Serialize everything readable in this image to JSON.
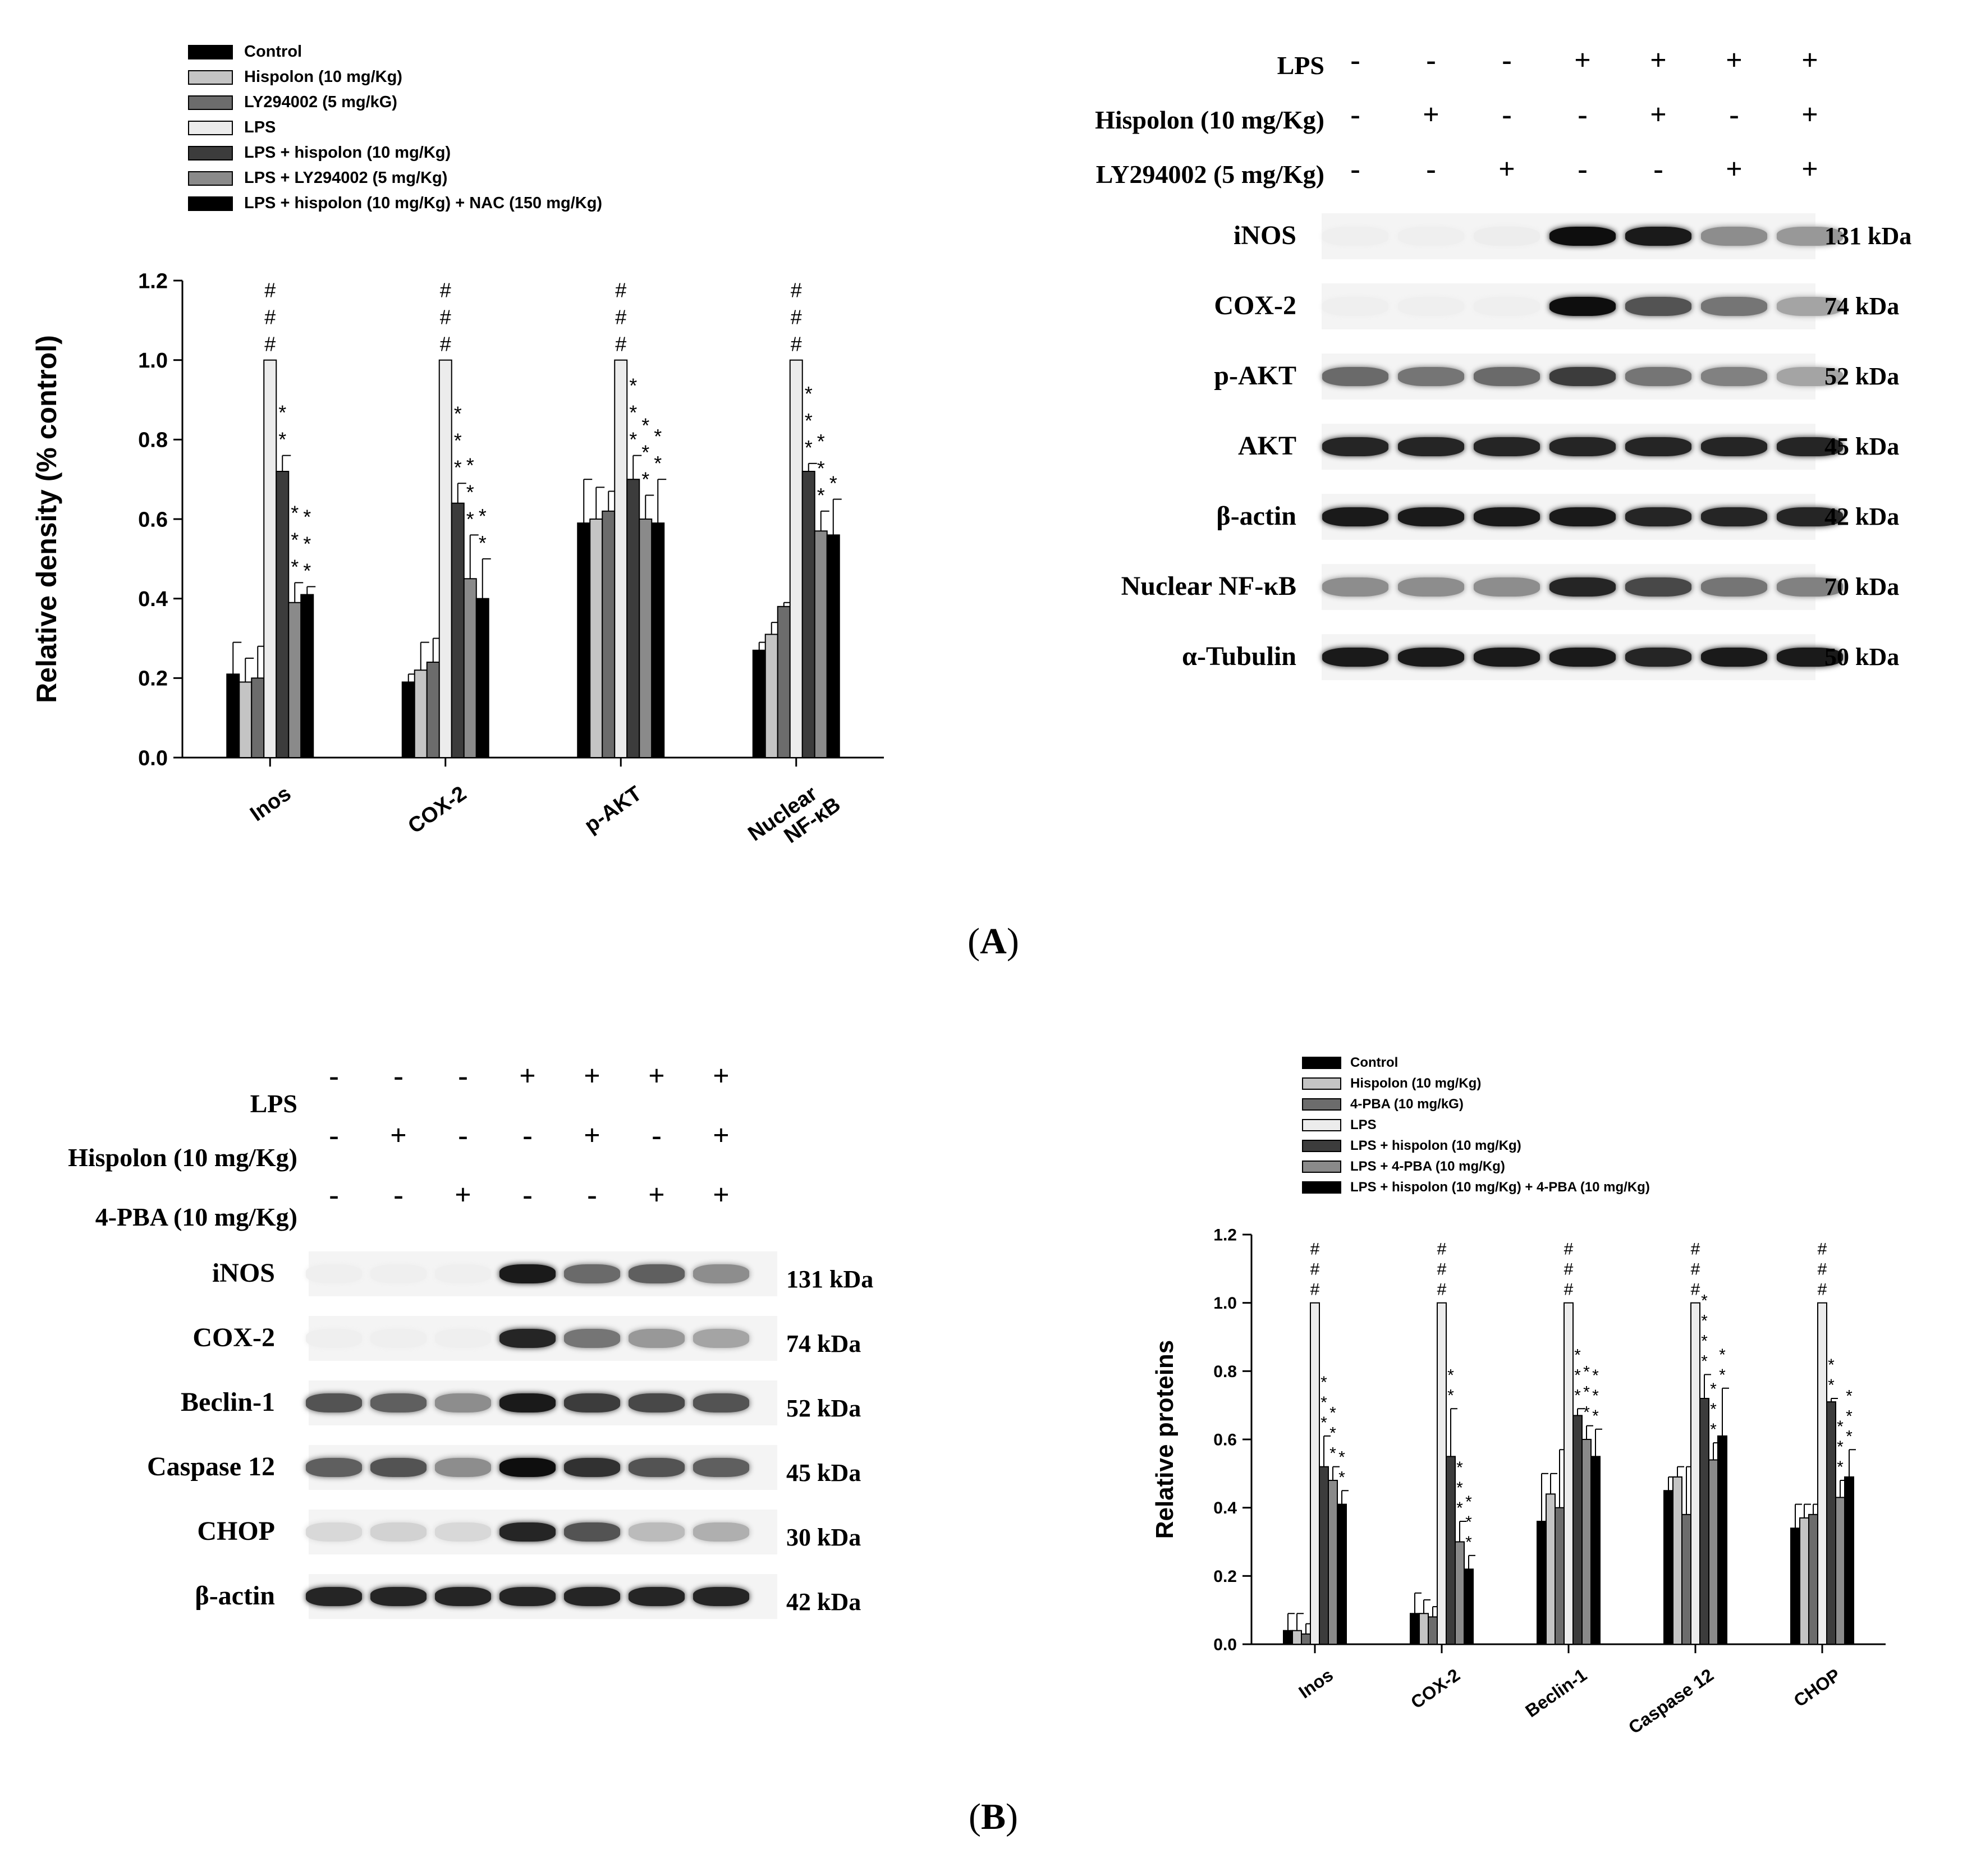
{
  "panel_a": {
    "caption_letter": "A",
    "chart_legend": [
      {
        "label": "Control",
        "color": "#000000"
      },
      {
        "label": "Hispolon (10 mg/Kg)",
        "color": "#c4c4c4"
      },
      {
        "label": "LY294002 (5 mg/kG)",
        "color": "#6c6c6c"
      },
      {
        "label": "LPS",
        "color": "#ececec"
      },
      {
        "label": "LPS + hispolon (10 mg/Kg)",
        "color": "#3c3c3c"
      },
      {
        "label": "LPS + LY294002 (5 mg/Kg)",
        "color": "#8a8a8a"
      },
      {
        "label": "LPS + hispolon (10 mg/Kg) + NAC (150 mg/Kg)",
        "color": "#000000"
      }
    ],
    "blot": {
      "conditions": [
        {
          "label": "LPS",
          "signs": [
            "-",
            "-",
            "-",
            "+",
            "+",
            "+",
            "+"
          ]
        },
        {
          "label": "Hispolon (10 mg/Kg)",
          "signs": [
            "-",
            "+",
            "-",
            "-",
            "+",
            "-",
            "+"
          ]
        },
        {
          "label": "LY294002 (5 mg/Kg)",
          "signs": [
            "-",
            "-",
            "+",
            "-",
            "-",
            "+",
            "+"
          ]
        }
      ],
      "proteins": [
        {
          "label": "iNOS",
          "kda": "131 kDa",
          "intensity": [
            0.02,
            0.02,
            0.03,
            1.0,
            0.95,
            0.45,
            0.4
          ]
        },
        {
          "label": "COX-2",
          "kda": "74 kDa",
          "intensity": [
            0.02,
            0.02,
            0.02,
            1.0,
            0.7,
            0.55,
            0.35
          ]
        },
        {
          "label": "p-AKT",
          "kda": "52 kDa",
          "intensity": [
            0.6,
            0.55,
            0.6,
            0.8,
            0.55,
            0.5,
            0.35
          ]
        },
        {
          "label": "AKT",
          "kda": "45 kDa",
          "intensity": [
            0.9,
            0.9,
            0.9,
            0.9,
            0.9,
            0.9,
            0.9
          ]
        },
        {
          "label": "β-actin",
          "kda": "42 kDa",
          "intensity": [
            0.95,
            0.95,
            0.95,
            0.95,
            0.9,
            0.9,
            0.9
          ]
        },
        {
          "label": "Nuclear NF-κB",
          "kda": "70 kDa",
          "intensity": [
            0.45,
            0.45,
            0.45,
            0.9,
            0.75,
            0.55,
            0.5
          ]
        },
        {
          "label": "α-Tubulin",
          "kda": "50 kDa",
          "intensity": [
            0.95,
            0.95,
            0.95,
            0.95,
            0.9,
            0.95,
            0.95
          ]
        }
      ]
    }
  },
  "panel_b": {
    "caption_letter": "B",
    "chart_legend": [
      {
        "label": "Control",
        "color": "#000000"
      },
      {
        "label": "Hispolon (10 mg/Kg)",
        "color": "#c4c4c4"
      },
      {
        "label": "4-PBA (10 mg/kG)",
        "color": "#6c6c6c"
      },
      {
        "label": "LPS",
        "color": "#ececec"
      },
      {
        "label": "LPS + hispolon (10 mg/Kg)",
        "color": "#3c3c3c"
      },
      {
        "label": "LPS + 4-PBA (10 mg/Kg)",
        "color": "#8a8a8a"
      },
      {
        "label": "LPS + hispolon (10 mg/Kg) + 4-PBA (10 mg/Kg)",
        "color": "#000000"
      }
    ],
    "blot": {
      "conditions": [
        {
          "label": "LPS",
          "signs": [
            "-",
            "-",
            "-",
            "+",
            "+",
            "+",
            "+"
          ]
        },
        {
          "label": "Hispolon (10 mg/Kg)",
          "signs": [
            "-",
            "+",
            "-",
            "-",
            "+",
            "-",
            "+"
          ]
        },
        {
          "label": "4-PBA (10 mg/Kg)",
          "signs": [
            "-",
            "-",
            "+",
            "-",
            "-",
            "+",
            "+"
          ]
        }
      ],
      "proteins": [
        {
          "label": "iNOS",
          "kda": "131 kDa",
          "intensity": [
            0.02,
            0.02,
            0.02,
            0.95,
            0.6,
            0.65,
            0.45
          ]
        },
        {
          "label": "COX-2",
          "kda": "74 kDa",
          "intensity": [
            0.02,
            0.02,
            0.02,
            0.9,
            0.55,
            0.4,
            0.35
          ]
        },
        {
          "label": "Beclin-1",
          "kda": "52 kDa",
          "intensity": [
            0.7,
            0.65,
            0.45,
            0.95,
            0.8,
            0.75,
            0.7
          ]
        },
        {
          "label": "Caspase 12",
          "kda": "45 kDa",
          "intensity": [
            0.65,
            0.7,
            0.45,
            1.0,
            0.85,
            0.7,
            0.65
          ]
        },
        {
          "label": "CHOP",
          "kda": "30 kDa",
          "intensity": [
            0.12,
            0.15,
            0.12,
            0.9,
            0.7,
            0.25,
            0.3
          ]
        },
        {
          "label": "β-actin",
          "kda": "42 kDa",
          "intensity": [
            0.9,
            0.9,
            0.9,
            0.9,
            0.9,
            0.9,
            0.9
          ]
        }
      ]
    }
  },
  "chart_data": [
    {
      "type": "bar",
      "ylabel": "Relative density (% control)",
      "ylim": [
        0,
        1.2
      ],
      "yticks": [
        "0.0",
        "0.2",
        "0.4",
        "0.6",
        "0.8",
        "1.0",
        "1.2"
      ],
      "categories": [
        "Inos",
        "COX-2",
        "p-AKT",
        "Nuclear NF-κB"
      ],
      "series": [
        {
          "name": "Control",
          "color": "#000000",
          "values": [
            0.21,
            0.19,
            0.59,
            0.27
          ],
          "errors": [
            0.08,
            0.02,
            0.11,
            0.02
          ]
        },
        {
          "name": "Hispolon (10 mg/Kg)",
          "color": "#c4c4c4",
          "values": [
            0.19,
            0.22,
            0.6,
            0.31
          ],
          "errors": [
            0.06,
            0.07,
            0.08,
            0.03
          ]
        },
        {
          "name": "LY294002 (5 mg/kG)",
          "color": "#6c6c6c",
          "values": [
            0.2,
            0.24,
            0.62,
            0.38
          ],
          "errors": [
            0.08,
            0.06,
            0.05,
            0.01
          ]
        },
        {
          "name": "LPS",
          "color": "#ececec",
          "values": [
            1.0,
            1.0,
            1.0,
            1.0
          ],
          "errors": [
            0,
            0,
            0,
            0
          ]
        },
        {
          "name": "LPS + hispolon (10 mg/Kg)",
          "color": "#3c3c3c",
          "values": [
            0.72,
            0.64,
            0.7,
            0.72
          ],
          "errors": [
            0.04,
            0.05,
            0.06,
            0.02
          ]
        },
        {
          "name": "LPS + LY294002 (5 mg/Kg)",
          "color": "#8a8a8a",
          "values": [
            0.39,
            0.45,
            0.6,
            0.57
          ],
          "errors": [
            0.05,
            0.11,
            0.06,
            0.05
          ]
        },
        {
          "name": "LPS + hispolon (10 mg/Kg) + NAC (150 mg/Kg)",
          "color": "#000000",
          "values": [
            0.41,
            0.4,
            0.59,
            0.56
          ],
          "errors": [
            0.02,
            0.1,
            0.11,
            0.09
          ]
        }
      ],
      "annotations": [
        {
          "category": 0,
          "series": 3,
          "text": "#\n#\n#"
        },
        {
          "category": 0,
          "series": 4,
          "text": "*\n*"
        },
        {
          "category": 0,
          "series": 5,
          "text": "*\n*\n*"
        },
        {
          "category": 0,
          "series": 6,
          "text": "*\n*\n*"
        },
        {
          "category": 1,
          "series": 3,
          "text": "#\n#\n#"
        },
        {
          "category": 1,
          "series": 4,
          "text": "*\n*\n*"
        },
        {
          "category": 1,
          "series": 5,
          "text": "*\n*\n*"
        },
        {
          "category": 1,
          "series": 6,
          "text": "*\n*"
        },
        {
          "category": 2,
          "series": 3,
          "text": "#\n#\n#"
        },
        {
          "category": 2,
          "series": 4,
          "text": "*\n*\n*"
        },
        {
          "category": 2,
          "series": 5,
          "text": "*\n*\n*"
        },
        {
          "category": 2,
          "series": 6,
          "text": "*\n*"
        },
        {
          "category": 3,
          "series": 3,
          "text": "#\n#\n#"
        },
        {
          "category": 3,
          "series": 4,
          "text": "*\n*\n*"
        },
        {
          "category": 3,
          "series": 5,
          "text": "*\n*\n*"
        },
        {
          "category": 3,
          "series": 6,
          "text": "*"
        }
      ]
    },
    {
      "type": "bar",
      "ylabel": "Relative proteins",
      "ylim": [
        0,
        1.2
      ],
      "yticks": [
        "0.0",
        "0.2",
        "0.4",
        "0.6",
        "0.8",
        "1.0",
        "1.2"
      ],
      "categories": [
        "Inos",
        "COX-2",
        "Beclin-1",
        "Caspase 12",
        "CHOP"
      ],
      "series": [
        {
          "name": "Control",
          "color": "#000000",
          "values": [
            0.04,
            0.09,
            0.36,
            0.45,
            0.34
          ],
          "errors": [
            0.05,
            0.06,
            0.14,
            0.04,
            0.07
          ]
        },
        {
          "name": "Hispolon (10 mg/Kg)",
          "color": "#c4c4c4",
          "values": [
            0.04,
            0.09,
            0.44,
            0.49,
            0.37
          ],
          "errors": [
            0.05,
            0.04,
            0.06,
            0.03,
            0.04
          ]
        },
        {
          "name": "4-PBA (10 mg/kG)",
          "color": "#6c6c6c",
          "values": [
            0.03,
            0.08,
            0.4,
            0.38,
            0.38
          ],
          "errors": [
            0.03,
            0.03,
            0.17,
            0.14,
            0.03
          ]
        },
        {
          "name": "LPS",
          "color": "#ececec",
          "values": [
            1.0,
            1.0,
            1.0,
            1.0,
            1.0
          ],
          "errors": [
            0,
            0,
            0,
            0,
            0
          ]
        },
        {
          "name": "LPS + hispolon (10 mg/Kg)",
          "color": "#3c3c3c",
          "values": [
            0.52,
            0.55,
            0.67,
            0.72,
            0.71
          ],
          "errors": [
            0.09,
            0.14,
            0.02,
            0.07,
            0.01
          ]
        },
        {
          "name": "LPS + 4-PBA (10 mg/Kg)",
          "color": "#8a8a8a",
          "values": [
            0.48,
            0.3,
            0.6,
            0.54,
            0.43
          ],
          "errors": [
            0.04,
            0.06,
            0.04,
            0.05,
            0.05
          ]
        },
        {
          "name": "LPS + hispolon (10 mg/Kg) + 4-PBA (10 mg/Kg)",
          "color": "#000000",
          "values": [
            0.41,
            0.22,
            0.55,
            0.61,
            0.49
          ],
          "errors": [
            0.04,
            0.04,
            0.08,
            0.14,
            0.08
          ]
        }
      ],
      "annotations": [
        {
          "category": 0,
          "series": 3,
          "text": "#\n#\n#"
        },
        {
          "category": 0,
          "series": 4,
          "text": "*\n*\n*"
        },
        {
          "category": 0,
          "series": 5,
          "text": "*\n*\n*"
        },
        {
          "category": 0,
          "series": 6,
          "text": "*\n*"
        },
        {
          "category": 1,
          "series": 3,
          "text": "#\n#\n#"
        },
        {
          "category": 1,
          "series": 4,
          "text": "*\n*"
        },
        {
          "category": 1,
          "series": 5,
          "text": "*\n*\n*"
        },
        {
          "category": 1,
          "series": 6,
          "text": "*\n*\n*"
        },
        {
          "category": 2,
          "series": 3,
          "text": "#\n#\n#"
        },
        {
          "category": 2,
          "series": 4,
          "text": "*\n*\n*"
        },
        {
          "category": 2,
          "series": 5,
          "text": "*\n*\n*"
        },
        {
          "category": 2,
          "series": 6,
          "text": "*\n*\n*"
        },
        {
          "category": 3,
          "series": 3,
          "text": "#\n#\n#"
        },
        {
          "category": 3,
          "series": 4,
          "text": "*\n*\n*\n*"
        },
        {
          "category": 3,
          "series": 5,
          "text": "*\n*\n*"
        },
        {
          "category": 3,
          "series": 6,
          "text": "*\n*"
        },
        {
          "category": 4,
          "series": 3,
          "text": "#\n#\n#"
        },
        {
          "category": 4,
          "series": 4,
          "text": "*\n*"
        },
        {
          "category": 4,
          "series": 5,
          "text": "*\n*\n*"
        },
        {
          "category": 4,
          "series": 6,
          "text": "*\n*\n*"
        }
      ]
    }
  ]
}
